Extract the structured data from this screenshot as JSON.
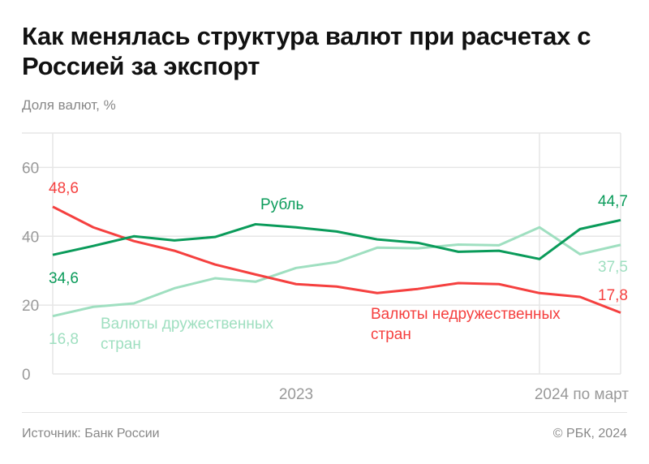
{
  "title": "Как менялась структура валют при расчетах с Россией за экспорт",
  "unit_label": "Доля валют, %",
  "source": "Источник: Банк России",
  "copyright": "© РБК, 2024",
  "chart_data": {
    "type": "line",
    "ylabel": "Доля валют, %",
    "ylim": [
      0,
      70
    ],
    "yticks": [
      "0",
      "20",
      "40",
      "60"
    ],
    "ytick_values": [
      0,
      20,
      40,
      60
    ],
    "x_tick_labels": [
      "2023",
      "2024 по март"
    ],
    "grid": true,
    "series": [
      {
        "name": "Рубль",
        "color": "#0a9b5a",
        "values": [
          34.6,
          37.2,
          40.0,
          38.8,
          39.8,
          43.5,
          42.6,
          41.4,
          39.1,
          38.1,
          35.5,
          35.8,
          33.4,
          42.1,
          44.7
        ],
        "start_label": "34,6",
        "end_label": "44,7"
      },
      {
        "name": "Валюты недружественных стран",
        "color": "#f5403f",
        "values": [
          48.6,
          42.6,
          38.6,
          35.8,
          31.8,
          28.9,
          26.1,
          25.4,
          23.5,
          24.7,
          26.4,
          26.1,
          23.5,
          22.4,
          17.8
        ],
        "start_label": "48,6",
        "end_label": "17,8"
      },
      {
        "name": "Валюты дружественных стран",
        "color": "#9fdfc0",
        "values": [
          16.8,
          19.5,
          20.5,
          24.9,
          27.8,
          26.8,
          30.8,
          32.5,
          36.7,
          36.5,
          37.6,
          37.4,
          42.6,
          34.8,
          37.5
        ],
        "start_label": "16,8",
        "end_label": "37,5"
      }
    ]
  }
}
